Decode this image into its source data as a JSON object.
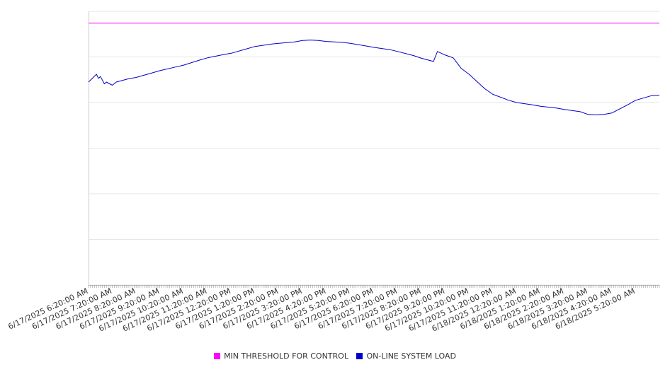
{
  "chart_data": {
    "type": "line",
    "title": "",
    "xlabel": "",
    "ylabel": "",
    "ylim": [
      0,
      6
    ],
    "grid": true,
    "legend_position": "bottom-center",
    "x_ticks": [
      "6/17/2025 6:20:00 AM",
      "6/17/2025 7:20:00 AM",
      "6/17/2025 8:20:00 AM",
      "6/17/2025 9:20:00 AM",
      "6/17/2025 10:20:00 AM",
      "6/17/2025 11:20:00 AM",
      "6/17/2025 12:20:00 PM",
      "6/17/2025 1:20:00 PM",
      "6/17/2025 2:20:00 PM",
      "6/17/2025 3:20:00 PM",
      "6/17/2025 4:20:00 PM",
      "6/17/2025 5:20:00 PM",
      "6/17/2025 6:20:00 PM",
      "6/17/2025 7:20:00 PM",
      "6/17/2025 8:20:00 PM",
      "6/17/2025 9:20:00 PM",
      "6/17/2025 10:20:00 PM",
      "6/17/2025 11:20:00 PM",
      "6/18/2025 12:20:00 AM",
      "6/18/2025 1:20:00 AM",
      "6/18/2025 2:20:00 AM",
      "6/18/2025 3:20:00 AM",
      "6/18/2025 4:20:00 AM",
      "6/18/2025 5:20:00 AM"
    ],
    "series": [
      {
        "name": "MIN THRESHOLD FOR CONTROL",
        "color": "#ff00ff",
        "x": [
          "6/17/2025 6:20:00 AM",
          "6/18/2025 6:20:00 AM"
        ],
        "y": [
          5.74,
          5.74
        ]
      },
      {
        "name": "ON-LINE SYSTEM LOAD",
        "color": "#0000cc",
        "x": [
          "6/17/2025 6:20:00 AM",
          "6/17/2025 6:40:00 AM",
          "6/17/2025 6:45:00 AM",
          "6/17/2025 6:50:00 AM",
          "6/17/2025 7:00:00 AM",
          "6/17/2025 7:05:00 AM",
          "6/17/2025 7:20:00 AM",
          "6/17/2025 7:30:00 AM",
          "6/17/2025 8:00:00 AM",
          "6/17/2025 8:20:00 AM",
          "6/17/2025 9:00:00 AM",
          "6/17/2025 9:20:00 AM",
          "6/17/2025 10:00:00 AM",
          "6/17/2025 10:20:00 AM",
          "6/17/2025 11:00:00 AM",
          "6/17/2025 11:20:00 AM",
          "6/17/2025 12:00:00 PM",
          "6/17/2025 12:20:00 PM",
          "6/17/2025 1:00:00 PM",
          "6/17/2025 1:20:00 PM",
          "6/17/2025 2:00:00 PM",
          "6/17/2025 2:20:00 PM",
          "6/17/2025 3:00:00 PM",
          "6/17/2025 3:20:00 PM",
          "6/17/2025 3:40:00 PM",
          "6/17/2025 4:00:00 PM",
          "6/17/2025 4:20:00 PM",
          "6/17/2025 5:00:00 PM",
          "6/17/2025 5:20:00 PM",
          "6/17/2025 6:00:00 PM",
          "6/17/2025 6:20:00 PM",
          "6/17/2025 7:00:00 PM",
          "6/17/2025 7:20:00 PM",
          "6/17/2025 8:00:00 PM",
          "6/17/2025 8:20:00 PM",
          "6/17/2025 8:50:00 PM",
          "6/17/2025 9:00:00 PM",
          "6/17/2025 9:20:00 PM",
          "6/17/2025 9:40:00 PM",
          "6/17/2025 10:00:00 PM",
          "6/17/2025 10:20:00 PM",
          "6/17/2025 11:00:00 PM",
          "6/17/2025 11:20:00 PM",
          "6/18/2025 12:00:00 AM",
          "6/18/2025 12:20:00 AM",
          "6/18/2025 1:00:00 AM",
          "6/18/2025 1:20:00 AM",
          "6/18/2025 2:00:00 AM",
          "6/18/2025 2:20:00 AM",
          "6/18/2025 3:00:00 AM",
          "6/18/2025 3:20:00 AM",
          "6/18/2025 3:40:00 AM",
          "6/18/2025 4:00:00 AM",
          "6/18/2025 4:20:00 AM",
          "6/18/2025 5:00:00 AM",
          "6/18/2025 5:20:00 AM",
          "6/18/2025 6:00:00 AM",
          "6/18/2025 6:20:00 AM"
        ],
        "y": [
          4.45,
          4.62,
          4.53,
          4.57,
          4.41,
          4.45,
          4.38,
          4.45,
          4.52,
          4.55,
          4.65,
          4.7,
          4.78,
          4.82,
          4.93,
          4.98,
          5.05,
          5.08,
          5.18,
          5.23,
          5.28,
          5.3,
          5.33,
          5.36,
          5.37,
          5.36,
          5.34,
          5.32,
          5.3,
          5.24,
          5.21,
          5.16,
          5.12,
          5.03,
          4.97,
          4.9,
          5.12,
          5.04,
          4.98,
          4.75,
          4.62,
          4.3,
          4.18,
          4.05,
          4.0,
          3.95,
          3.92,
          3.88,
          3.85,
          3.8,
          3.74,
          3.73,
          3.74,
          3.77,
          3.95,
          4.05,
          4.15,
          4.16
        ]
      }
    ]
  }
}
